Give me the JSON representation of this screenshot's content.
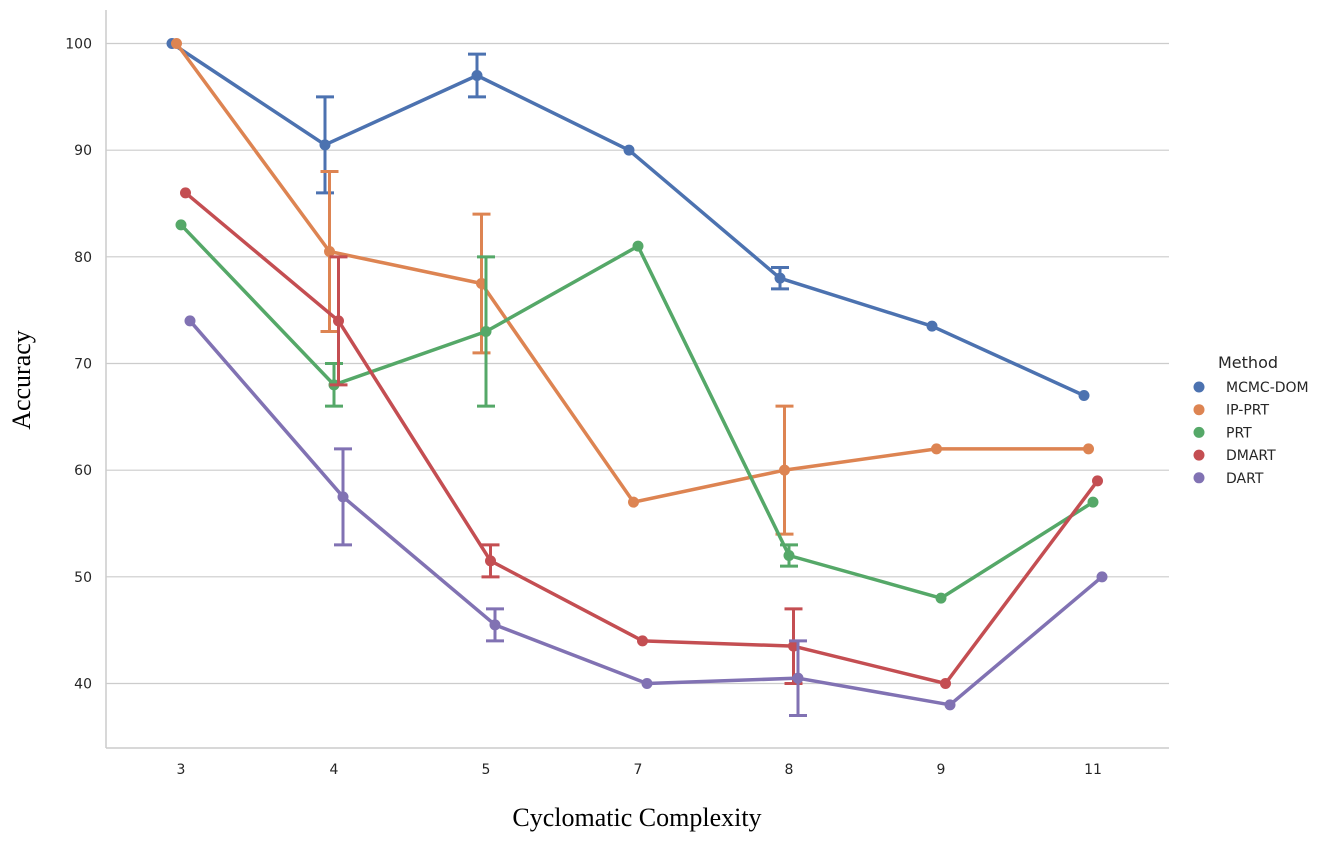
{
  "chart_data": {
    "type": "line",
    "title": "",
    "xlabel": "Cyclomatic Complexity",
    "ylabel": "Accuracy",
    "categories": [
      "3",
      "4",
      "5",
      "7",
      "8",
      "9",
      "11"
    ],
    "ylim": [
      34,
      103
    ],
    "yticks": [
      40,
      50,
      60,
      70,
      80,
      90,
      100
    ],
    "grid": "horizontal",
    "legend_title": "Method",
    "legend_position": "right",
    "series": [
      {
        "name": "MCMC-DOM",
        "color": "#4c72b0",
        "values": [
          100,
          90.5,
          97,
          90,
          78,
          73.5,
          67
        ],
        "error_low": [
          null,
          86,
          95,
          null,
          77,
          null,
          null
        ],
        "error_high": [
          null,
          95,
          99,
          null,
          79,
          null,
          null
        ]
      },
      {
        "name": "IP-PRT",
        "color": "#dd8452",
        "values": [
          100,
          80.5,
          77.5,
          57,
          60,
          62,
          62
        ],
        "error_low": [
          null,
          73,
          71,
          null,
          54,
          null,
          null
        ],
        "error_high": [
          null,
          88,
          84,
          null,
          66,
          null,
          null
        ]
      },
      {
        "name": "PRT",
        "color": "#55a868",
        "values": [
          83,
          68,
          73,
          81,
          52,
          48,
          57
        ],
        "error_low": [
          null,
          66,
          66,
          null,
          51,
          null,
          null
        ],
        "error_high": [
          null,
          70,
          80,
          null,
          53,
          null,
          null
        ]
      },
      {
        "name": "DMART",
        "color": "#c44e52",
        "values": [
          86,
          74,
          51.5,
          44,
          43.5,
          40,
          59
        ],
        "error_low": [
          null,
          68,
          50,
          null,
          40,
          null,
          null
        ],
        "error_high": [
          null,
          80,
          53,
          null,
          47,
          null,
          null
        ]
      },
      {
        "name": "DART",
        "color": "#8172b3",
        "values": [
          74,
          57.5,
          45.5,
          40,
          40.5,
          38,
          50
        ],
        "error_low": [
          null,
          53,
          44,
          null,
          37,
          null,
          null
        ],
        "error_high": [
          null,
          62,
          47,
          null,
          44,
          null,
          null
        ]
      }
    ]
  }
}
